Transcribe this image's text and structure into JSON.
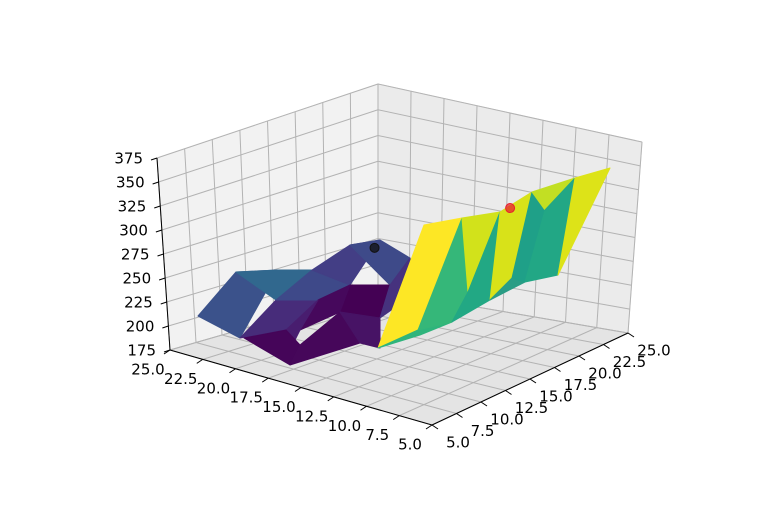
{
  "chart_data": {
    "type": "surface3d",
    "title": "",
    "xlabel": "",
    "ylabel": "",
    "zlabel": "",
    "grid": true,
    "colormap": "viridis",
    "x_ticks": [
      "5.0",
      "7.5",
      "10.0",
      "12.5",
      "15.0",
      "17.5",
      "20.0",
      "22.5",
      "25.0"
    ],
    "y_ticks": [
      "5.0",
      "7.5",
      "10.0",
      "12.5",
      "15.0",
      "17.5",
      "20.0",
      "22.5",
      "25.0"
    ],
    "z_ticks": [
      "175",
      "200",
      "225",
      "250",
      "275",
      "300",
      "325",
      "350",
      "375"
    ],
    "xlim": [
      5,
      25
    ],
    "ylim": [
      5,
      25
    ],
    "zlim": [
      175,
      375
    ],
    "markers": [
      {
        "name": "",
        "color": "#e8222e",
        "x": 25.0,
        "y": 14.0,
        "z": 270
      },
      {
        "name": "",
        "color": "#111111",
        "x": 10.5,
        "y": 13.5,
        "z": 300
      }
    ]
  }
}
